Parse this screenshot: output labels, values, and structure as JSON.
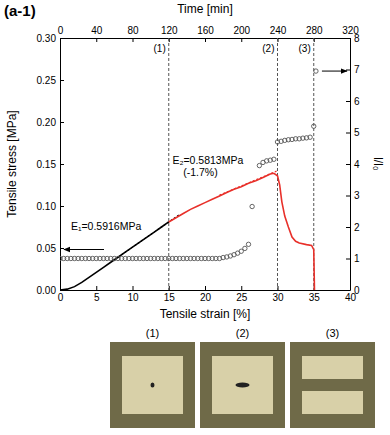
{
  "chart_data": {
    "type": "line",
    "title": "(a-1)",
    "xlabel": "Tensile strain [%]",
    "ylabel": "Tensile stress [MPa]",
    "x2label": "Time [min]",
    "y2label": "l/l₀",
    "xlim": [
      0,
      40
    ],
    "xticks": [
      0,
      5,
      10,
      15,
      20,
      25,
      30,
      35,
      40
    ],
    "x2lim": [
      0,
      320
    ],
    "x2ticks": [
      0,
      40,
      80,
      120,
      160,
      200,
      240,
      280,
      320
    ],
    "ylim": [
      0,
      0.3
    ],
    "yticks": [
      {
        "value": 0,
        "label": "0.00"
      },
      0.05,
      {
        "value": 0.1,
        "label": "0.10"
      },
      0.15,
      {
        "value": 0.2,
        "label": "0.20"
      },
      0.25,
      {
        "value": 0.3,
        "label": "0.30"
      }
    ],
    "y2lim": [
      0,
      8
    ],
    "y2ticks": [
      0,
      1,
      2,
      3,
      4,
      5,
      6,
      7,
      8
    ],
    "grid": false,
    "series": [
      {
        "type": "line",
        "color": "#000000",
        "line_style": "solid",
        "x": [
          0,
          1,
          2,
          3,
          4,
          5,
          6,
          7,
          8,
          9,
          10,
          11,
          12,
          13,
          14,
          15
        ],
        "values": [
          0,
          0.001,
          0.004,
          0.009,
          0.015,
          0.021,
          0.027,
          0.033,
          0.039,
          0.045,
          0.051,
          0.057,
          0.063,
          0.069,
          0.075,
          0.081
        ]
      },
      {
        "type": "line",
        "color": "#000000",
        "line_style": "dotted",
        "x": [
          8,
          16.5
        ],
        "values": [
          0.039,
          0.09
        ]
      },
      {
        "type": "line",
        "color": "#e8302a",
        "line_style": "solid",
        "x": [
          15,
          16,
          17,
          18,
          19,
          20,
          21,
          22,
          23,
          24,
          25,
          26,
          27,
          28,
          29,
          29.5,
          30,
          30.3,
          30.6,
          31,
          31.5,
          32,
          32.5,
          33,
          34,
          34.7,
          35,
          35.1
        ],
        "values": [
          0.081,
          0.086,
          0.091,
          0.096,
          0.1,
          0.104,
          0.108,
          0.112,
          0.116,
          0.12,
          0.123,
          0.127,
          0.13,
          0.134,
          0.138,
          0.139,
          0.136,
          0.125,
          0.105,
          0.088,
          0.075,
          0.063,
          0.058,
          0.056,
          0.054,
          0.053,
          0.048,
          0
        ]
      },
      {
        "type": "line",
        "color": "#e8302a",
        "line_style": "dotted",
        "x": [
          22,
          30
        ],
        "values": [
          0.113,
          0.142
        ]
      },
      {
        "type": "scatter",
        "color": "#555555",
        "marker": "circle",
        "axis": "y2",
        "x": [
          0,
          0.5,
          1,
          1.5,
          2,
          2.5,
          3,
          3.5,
          4,
          4.5,
          5,
          5.5,
          6,
          6.5,
          7,
          7.5,
          8,
          8.5,
          9,
          9.5,
          10,
          10.5,
          11,
          11.5,
          12,
          12.5,
          13,
          13.5,
          14,
          14.5,
          15,
          15.5,
          16,
          16.5,
          17,
          17.5,
          18,
          18.5,
          19,
          19.5,
          20,
          20.5,
          21,
          21.5,
          22,
          22.5,
          23,
          23.5,
          24,
          24.5,
          25,
          25.5,
          26,
          26.5,
          27.5,
          28,
          28.5,
          29,
          29.5,
          30,
          30.5,
          31,
          31.5,
          32,
          32.5,
          33,
          33.5,
          34,
          34.5,
          35,
          35.3
        ],
        "values": [
          1,
          1,
          1,
          1,
          1,
          1,
          1,
          1,
          1,
          1,
          1,
          1,
          1,
          1,
          1,
          1,
          1,
          1,
          1,
          1,
          1,
          1,
          1,
          1,
          1,
          1,
          1,
          1,
          1,
          1,
          1,
          1,
          1,
          1,
          1,
          1,
          1,
          1,
          1,
          1,
          1,
          1,
          1,
          1,
          1,
          1.03,
          1.05,
          1.08,
          1.12,
          1.17,
          1.23,
          1.32,
          1.45,
          2.65,
          3.95,
          4.05,
          4.1,
          4.12,
          4.15,
          4.7,
          4.72,
          4.75,
          4.77,
          4.78,
          4.8,
          4.8,
          4.82,
          4.83,
          4.85,
          5.2,
          6.95
        ]
      }
    ],
    "vlines": [
      {
        "x": 15,
        "label": "(1)"
      },
      {
        "x": 30,
        "label": "(2)"
      },
      {
        "x": 35,
        "label": "(3)"
      }
    ],
    "annotations": [
      {
        "text": "E₁=0.5916MPa",
        "x": 1.5,
        "y": 0.072,
        "color": "#000000"
      },
      {
        "text": "E₂=0.5813MPa",
        "x": 15.5,
        "y": 0.15,
        "color": "#000000"
      },
      {
        "text": "(-1.7%)",
        "x": 17,
        "y": 0.136,
        "color": "#000000"
      }
    ],
    "photo_labels": [
      "(1)",
      "(2)",
      "(3)"
    ]
  }
}
